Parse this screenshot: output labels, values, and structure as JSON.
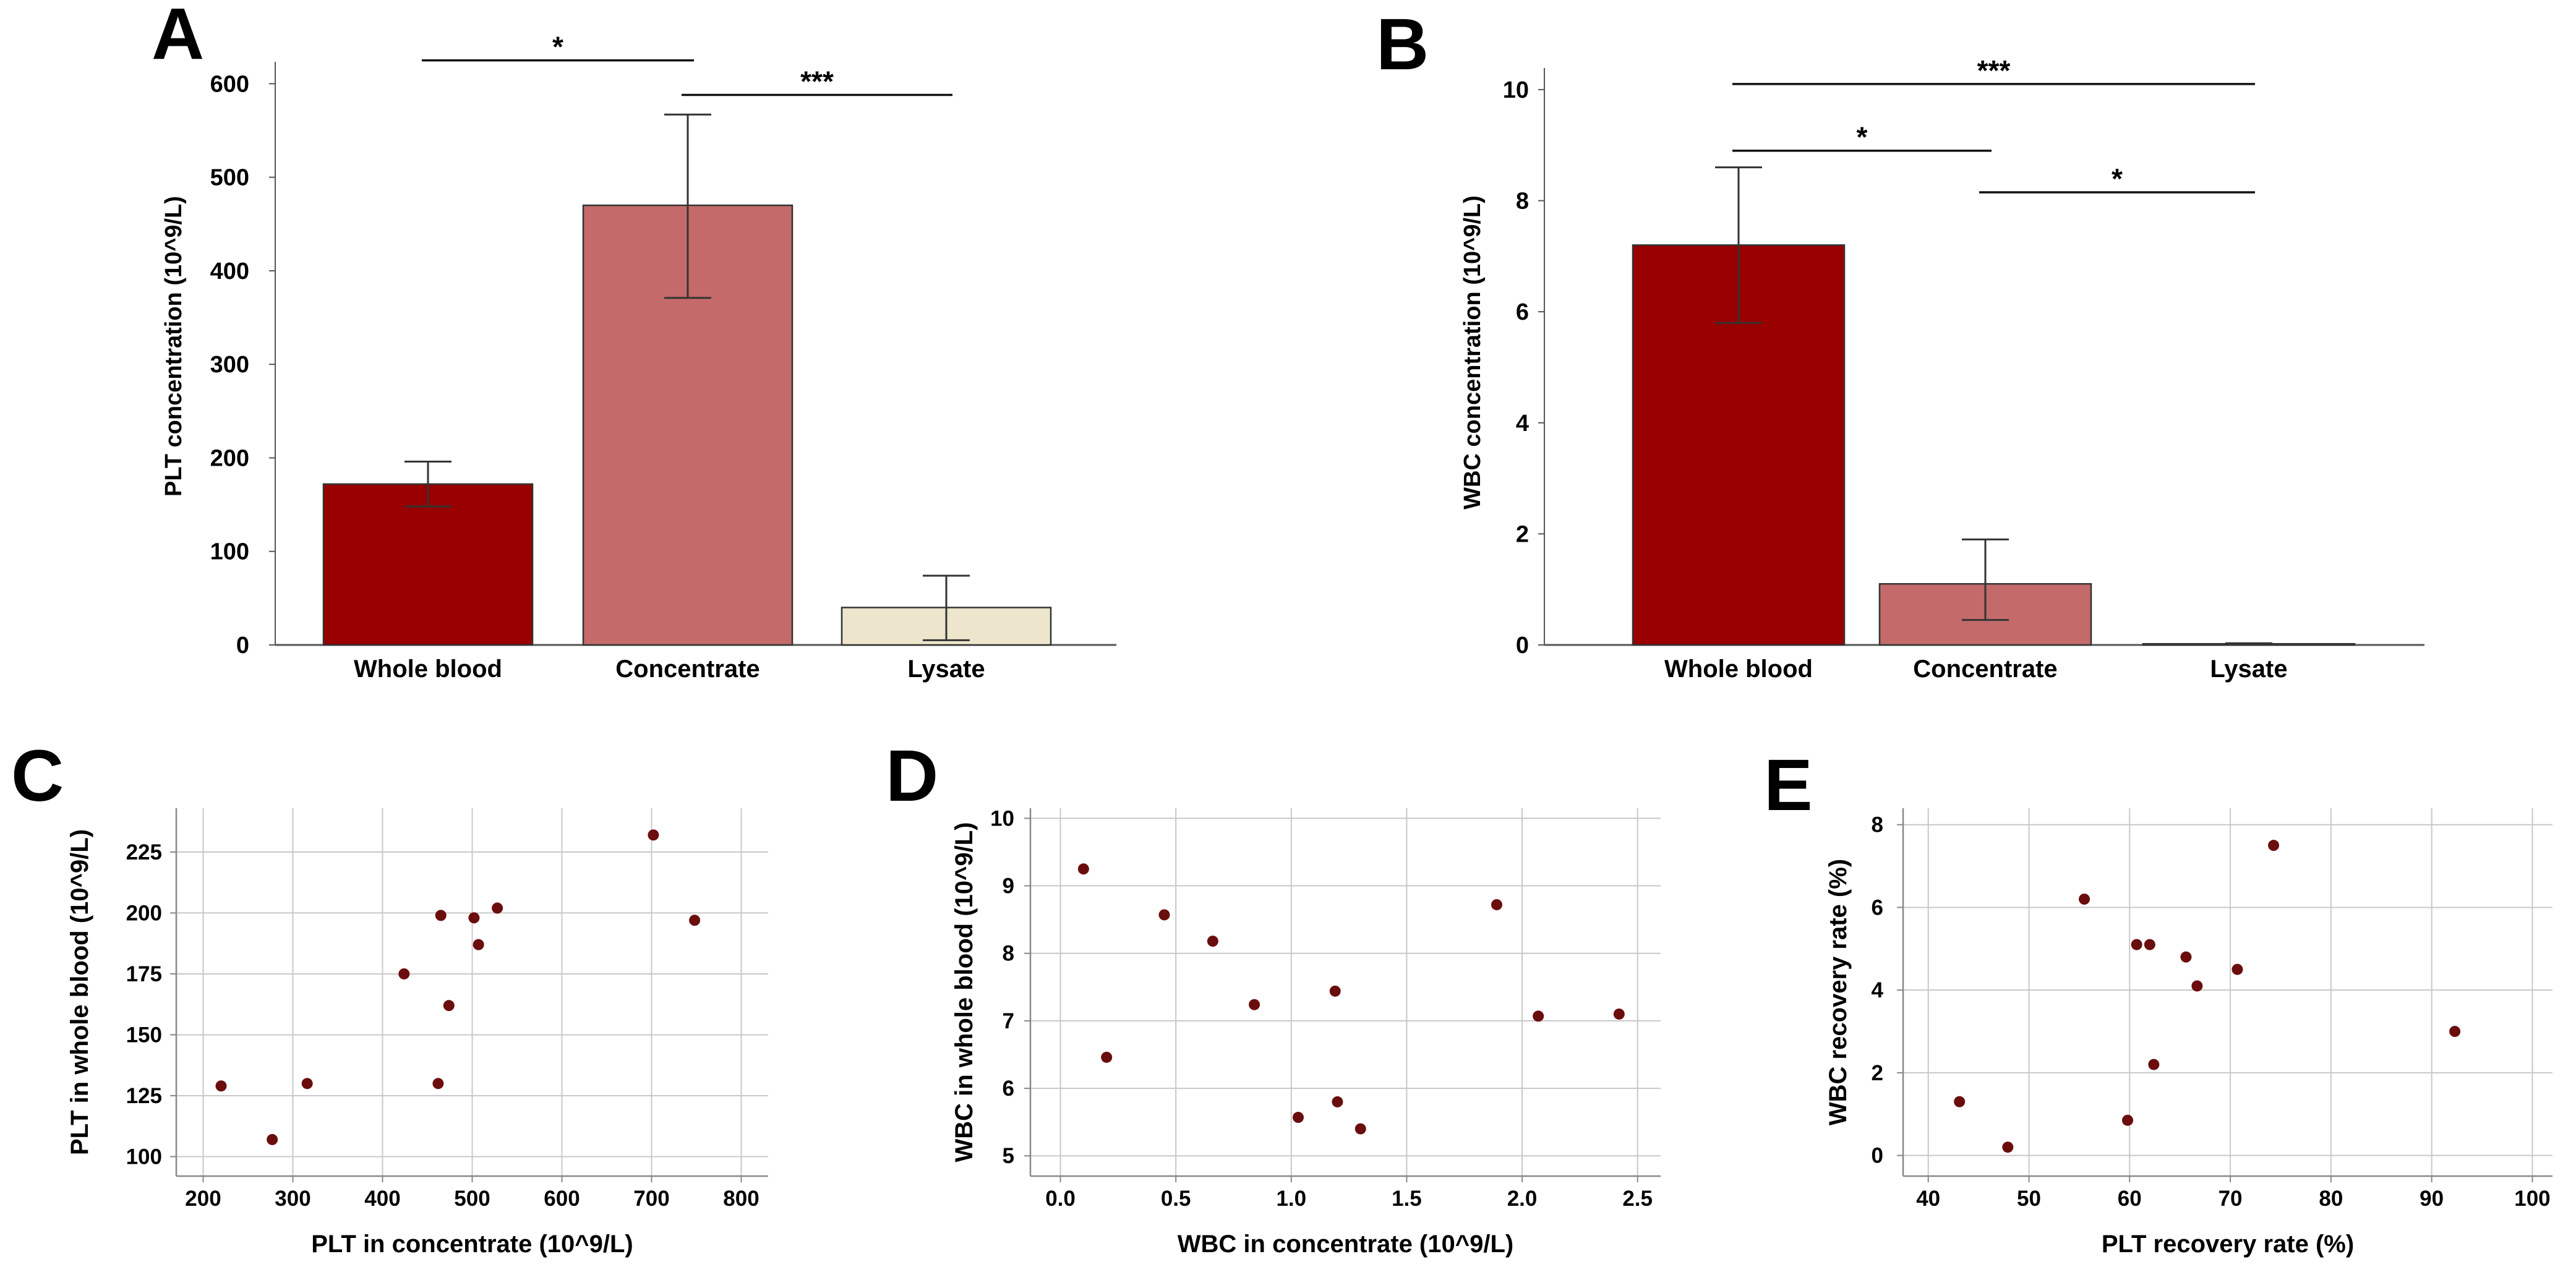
{
  "colors": {
    "whole_blood": "#990000",
    "concentrate": "#c46a6a",
    "lysate": "#ede6cc",
    "point": "#6b0d0d",
    "grid": "#c8c8c8",
    "frame": "#888888",
    "text": "#000000"
  },
  "chart_data": [
    {
      "panel": "A",
      "type": "bar",
      "categories": [
        "Whole blood",
        "Concentrate",
        "Lysate"
      ],
      "values": [
        172,
        470,
        40
      ],
      "errors": [
        [
          148,
          196
        ],
        [
          371,
          567
        ],
        [
          5,
          74
        ]
      ],
      "ylabel": "PLT concentration (10^9/L)",
      "xlabel": "",
      "ylim": [
        0,
        630
      ],
      "yticks": [
        0,
        100,
        200,
        300,
        400,
        500,
        600
      ],
      "ytick_labels": [
        "0",
        "100",
        "200",
        "300",
        "400",
        "500",
        "600"
      ],
      "significance": [
        {
          "from": "Whole blood",
          "to": "Concentrate",
          "y": 625,
          "label": "*"
        },
        {
          "from": "Concentrate",
          "to": "Lysate",
          "y": 588,
          "label": "***"
        }
      ]
    },
    {
      "panel": "B",
      "type": "bar",
      "categories": [
        "Whole blood",
        "Concentrate",
        "Lysate"
      ],
      "values": [
        7.2,
        1.1,
        0.02
      ],
      "errors": [
        [
          5.8,
          8.6
        ],
        [
          0.45,
          1.9
        ],
        [
          0.0,
          0.03
        ]
      ],
      "ylabel": "WBC concentration (10^9/L)",
      "xlabel": "",
      "ylim": [
        0,
        10.5
      ],
      "yticks": [
        0,
        2,
        4,
        6,
        8,
        10
      ],
      "ytick_labels": [
        "0",
        "2",
        "4",
        "6",
        "8",
        "10"
      ],
      "significance": [
        {
          "from": "Whole blood",
          "to": "Lysate",
          "y": 10.1,
          "label": "***"
        },
        {
          "from": "Whole blood",
          "to": "Concentrate",
          "y": 8.9,
          "label": "*"
        },
        {
          "from": "Concentrate",
          "to": "Lysate",
          "y": 8.15,
          "label": "*"
        }
      ]
    },
    {
      "panel": "C",
      "type": "scatter",
      "xlabel": "PLT in concentrate (10^9/L)",
      "ylabel": "PLT in whole blood (10^9/L)",
      "xlim": [
        170,
        830
      ],
      "ylim": [
        92,
        243
      ],
      "xticks": [
        200,
        300,
        400,
        500,
        600,
        700,
        800
      ],
      "xtick_labels": [
        "200",
        "300",
        "400",
        "500",
        "600",
        "700",
        "800"
      ],
      "yticks": [
        100,
        125,
        150,
        175,
        200,
        225
      ],
      "ytick_labels": [
        "100",
        "125",
        "150",
        "175",
        "200",
        "225"
      ],
      "x": [
        220,
        277,
        316,
        424,
        462,
        465,
        474,
        502,
        507,
        528,
        702,
        748
      ],
      "y": [
        129,
        107,
        130,
        175,
        130,
        199,
        162,
        198,
        187,
        202,
        232,
        197
      ]
    },
    {
      "panel": "D",
      "type": "scatter",
      "xlabel": "WBC in concentrate (10^9/L)",
      "ylabel": "WBC in whole blood (10^9/L)",
      "xlim": [
        -0.13,
        2.6
      ],
      "ylim": [
        4.7,
        10.15
      ],
      "xticks": [
        0.0,
        0.5,
        1.0,
        1.5,
        2.0,
        2.5
      ],
      "xtick_labels": [
        "0.0",
        "0.5",
        "1.0",
        "1.5",
        "2.0",
        "2.5"
      ],
      "yticks": [
        5,
        6,
        7,
        8,
        9,
        10
      ],
      "ytick_labels": [
        "5",
        "6",
        "7",
        "8",
        "9",
        "10"
      ],
      "x": [
        0.1,
        0.2,
        0.45,
        0.66,
        0.84,
        1.03,
        1.19,
        1.2,
        1.3,
        1.89,
        2.07,
        2.42
      ],
      "y": [
        9.25,
        6.46,
        8.57,
        8.18,
        7.24,
        5.57,
        7.44,
        5.8,
        5.4,
        8.72,
        7.07,
        7.1
      ]
    },
    {
      "panel": "E",
      "type": "scatter",
      "xlabel": "PLT recovery rate (%)",
      "ylabel": "WBC recovery rate (%)",
      "xlim": [
        37.5,
        102
      ],
      "ylim": [
        -0.5,
        8.4
      ],
      "xticks": [
        40,
        50,
        60,
        70,
        80,
        90,
        100
      ],
      "xtick_labels": [
        "40",
        "50",
        "60",
        "70",
        "80",
        "90",
        "100"
      ],
      "yticks": [
        0,
        2,
        4,
        6,
        8
      ],
      "ytick_labels": [
        "0",
        "2",
        "4",
        "6",
        "8"
      ],
      "x": [
        43.1,
        47.9,
        55.5,
        59.8,
        60.7,
        62.0,
        62.4,
        65.6,
        66.7,
        70.7,
        74.3,
        92.3
      ],
      "y": [
        1.3,
        0.2,
        6.2,
        0.85,
        5.1,
        5.1,
        2.2,
        4.8,
        4.1,
        4.5,
        7.5,
        3.0
      ]
    }
  ]
}
